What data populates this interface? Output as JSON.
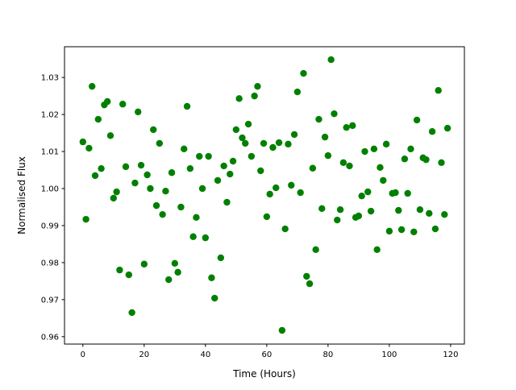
{
  "chart_data": {
    "type": "scatter",
    "title": "",
    "xlabel": "Time (Hours)",
    "ylabel": "Normalised Flux",
    "xlim": [
      -6,
      124.5
    ],
    "ylim": [
      0.958,
      1.0383
    ],
    "xticks": [
      0,
      20,
      40,
      60,
      80,
      100,
      120
    ],
    "xtick_labels": [
      "0",
      "20",
      "40",
      "60",
      "80",
      "100",
      "120"
    ],
    "yticks": [
      0.96,
      0.97,
      0.98,
      0.99,
      1.0,
      1.01,
      1.02,
      1.03
    ],
    "ytick_labels": [
      "0.96",
      "0.97",
      "0.98",
      "0.99",
      "1.00",
      "1.01",
      "1.02",
      "1.03"
    ],
    "grid": false,
    "marker_color": "#008000",
    "x": [
      0,
      1,
      2,
      3,
      4,
      5,
      6,
      7,
      8,
      9,
      10,
      11,
      12,
      13,
      14,
      15,
      16,
      17,
      18,
      19,
      20,
      21,
      22,
      23,
      24,
      25,
      26,
      27,
      28,
      29,
      30,
      31,
      32,
      33,
      34,
      35,
      36,
      37,
      38,
      39,
      40,
      41,
      42,
      43,
      44,
      45,
      46,
      47,
      48,
      49,
      50,
      51,
      52,
      53,
      54,
      55,
      56,
      57,
      58,
      59,
      60,
      61,
      62,
      63,
      64,
      65,
      66,
      67,
      68,
      69,
      70,
      71,
      72,
      73,
      74,
      75,
      76,
      77,
      78,
      79,
      80,
      81,
      82,
      83,
      84,
      85,
      86,
      87,
      88,
      89,
      90,
      91,
      92,
      93,
      94,
      95,
      96,
      97,
      98,
      99,
      100,
      101,
      102,
      103,
      104,
      105,
      106,
      107,
      108,
      109,
      110,
      111,
      112,
      113,
      114,
      115,
      116,
      117,
      118,
      119
    ],
    "y": [
      1.0126,
      0.9917,
      1.0109,
      1.0276,
      1.0035,
      1.0187,
      1.0054,
      1.0226,
      1.0235,
      1.0143,
      0.9974,
      0.9991,
      0.978,
      1.0228,
      1.0059,
      0.9767,
      0.9665,
      1.0015,
      1.0207,
      1.0063,
      0.9796,
      1.0037,
      1.0,
      1.0159,
      0.9954,
      1.0122,
      0.993,
      0.9993,
      0.9754,
      1.0043,
      0.9798,
      0.9774,
      0.995,
      1.0107,
      1.0222,
      1.0054,
      0.987,
      0.9922,
      1.0087,
      1.0,
      0.9867,
      1.0087,
      0.9759,
      0.9704,
      1.0022,
      0.9813,
      1.0061,
      0.9963,
      1.0039,
      1.0074,
      1.0159,
      1.0243,
      1.0137,
      1.0122,
      1.0174,
      1.0087,
      1.025,
      1.0276,
      1.0048,
      1.0122,
      0.9924,
      0.9985,
      1.0111,
      1.0002,
      1.0124,
      0.9617,
      0.9891,
      1.012,
      1.0009,
      1.0146,
      1.0261,
      0.9989,
      1.0311,
      0.9763,
      0.9743,
      1.0055,
      0.9835,
      1.0187,
      0.9946,
      1.0139,
      1.0089,
      1.0348,
      1.0202,
      0.9915,
      0.9943,
      1.007,
      1.0165,
      1.0061,
      1.017,
      0.9922,
      0.9926,
      0.998,
      1.01,
      0.9991,
      0.9939,
      1.0107,
      0.9835,
      1.0057,
      1.0022,
      1.012,
      0.9885,
      0.9987,
      0.9989,
      0.9941,
      0.9889,
      1.008,
      0.9987,
      1.0107,
      0.9883,
      1.0185,
      0.9943,
      1.0083,
      1.0078,
      0.9933,
      1.0154,
      0.9891,
      1.0265,
      1.007,
      0.993,
      1.0163
    ]
  }
}
